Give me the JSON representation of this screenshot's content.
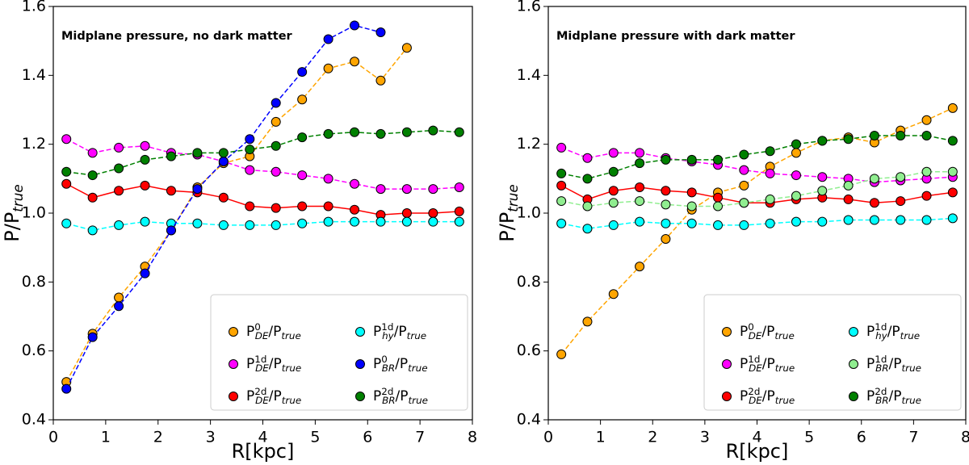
{
  "chart_data": [
    {
      "type": "line",
      "title": "Midplane pressure, no dark matter",
      "xlabel": "R[kpc]",
      "ylabel": "P/P_{true}",
      "x": [
        0.25,
        0.75,
        1.25,
        1.75,
        2.25,
        2.75,
        3.25,
        3.75,
        4.25,
        4.75,
        5.25,
        5.75,
        6.25,
        6.75,
        7.25,
        7.75
      ],
      "xlim": [
        0,
        8
      ],
      "ylim": [
        0.4,
        1.6
      ],
      "xticks": [
        0,
        1,
        2,
        3,
        4,
        5,
        6,
        7,
        8
      ],
      "yticks": [
        0.4,
        0.6,
        0.8,
        {
          "value": 1,
          "label": "1.0"
        },
        1.2,
        1.4,
        1.6
      ],
      "legend": "lower right",
      "series": [
        {
          "name": "P^{0}_{DE}/P_{true}",
          "color": "#ffa500",
          "linestyle": "dashed",
          "values": [
            0.51,
            0.65,
            0.755,
            0.845,
            0.95,
            1.075,
            1.145,
            1.165,
            1.265,
            1.33,
            1.42,
            1.44,
            1.385,
            1.48,
            null,
            null
          ]
        },
        {
          "name": "P^{1d}_{DE}/P_{true}",
          "color": "#ff00ff",
          "linestyle": "dashed",
          "values": [
            1.215,
            1.175,
            1.19,
            1.195,
            1.175,
            1.17,
            1.15,
            1.125,
            1.12,
            1.11,
            1.1,
            1.085,
            1.07,
            1.07,
            1.07,
            1.075
          ]
        },
        {
          "name": "P^{2d}_{DE}/P_{true}",
          "color": "#ff0000",
          "linestyle": "solid",
          "values": [
            1.085,
            1.045,
            1.065,
            1.08,
            1.065,
            1.06,
            1.045,
            1.02,
            1.015,
            1.02,
            1.02,
            1.01,
            0.995,
            1.0,
            1.0,
            1.005
          ]
        },
        {
          "name": "P^{1d}_{hy}/P_{true}",
          "color": "#00ffff",
          "linestyle": "dashed",
          "values": [
            0.97,
            0.95,
            0.965,
            0.975,
            0.97,
            0.97,
            0.965,
            0.965,
            0.965,
            0.97,
            0.975,
            0.975,
            0.975,
            0.975,
            0.975,
            0.975
          ]
        },
        {
          "name": "P^{0}_{BR}/P_{true}",
          "color": "#0000ff",
          "linestyle": "dashed",
          "values": [
            0.49,
            0.64,
            0.73,
            0.825,
            0.95,
            1.07,
            1.15,
            1.215,
            1.32,
            1.41,
            1.505,
            1.545,
            1.525,
            null,
            null,
            null
          ]
        },
        {
          "name": "P^{2d}_{BR}/P_{true}",
          "color": "#008000",
          "linestyle": "dashed",
          "values": [
            1.12,
            1.11,
            1.13,
            1.155,
            1.165,
            1.175,
            1.175,
            1.185,
            1.195,
            1.22,
            1.23,
            1.235,
            1.23,
            1.235,
            1.24,
            1.235
          ]
        }
      ]
    },
    {
      "type": "line",
      "title": "Midplane pressure with dark matter",
      "xlabel": "R[kpc]",
      "ylabel": "P/P_{true}",
      "x": [
        0.25,
        0.75,
        1.25,
        1.75,
        2.25,
        2.75,
        3.25,
        3.75,
        4.25,
        4.75,
        5.25,
        5.75,
        6.25,
        6.75,
        7.25,
        7.75
      ],
      "xlim": [
        0,
        8
      ],
      "ylim": [
        0.4,
        1.6
      ],
      "xticks": [
        0,
        1,
        2,
        3,
        4,
        5,
        6,
        7,
        8
      ],
      "yticks": [
        0.4,
        0.6,
        0.8,
        {
          "value": 1,
          "label": "1.0"
        },
        1.2,
        1.4,
        1.6
      ],
      "legend": "lower right",
      "series": [
        {
          "name": "P^{0}_{DE}/P_{true}",
          "color": "#ffa500",
          "linestyle": "dashed",
          "values": [
            0.59,
            0.685,
            0.765,
            0.845,
            0.925,
            1.01,
            1.06,
            1.08,
            1.135,
            1.175,
            1.21,
            1.22,
            1.205,
            1.24,
            1.27,
            1.305
          ]
        },
        {
          "name": "P^{1d}_{DE}/P_{true}",
          "color": "#ff00ff",
          "linestyle": "dashed",
          "values": [
            1.19,
            1.16,
            1.175,
            1.175,
            1.16,
            1.15,
            1.14,
            1.125,
            1.115,
            1.11,
            1.105,
            1.1,
            1.09,
            1.095,
            1.1,
            1.105
          ]
        },
        {
          "name": "P^{2d}_{DE}/P_{true}",
          "color": "#ff0000",
          "linestyle": "solid",
          "values": [
            1.08,
            1.04,
            1.065,
            1.075,
            1.065,
            1.06,
            1.045,
            1.03,
            1.03,
            1.04,
            1.045,
            1.04,
            1.03,
            1.035,
            1.05,
            1.06
          ]
        },
        {
          "name": "P^{1d}_{hy}/P_{true}",
          "color": "#00ffff",
          "linestyle": "dashed",
          "values": [
            0.97,
            0.955,
            0.965,
            0.975,
            0.97,
            0.97,
            0.965,
            0.965,
            0.97,
            0.975,
            0.975,
            0.98,
            0.98,
            0.98,
            0.98,
            0.985
          ]
        },
        {
          "name": "P^{1d}_{BR}/P_{true}",
          "color": "#90ee90",
          "linestyle": "dashed",
          "values": [
            1.035,
            1.02,
            1.03,
            1.035,
            1.025,
            1.02,
            1.02,
            1.03,
            1.04,
            1.05,
            1.065,
            1.08,
            1.1,
            1.105,
            1.12,
            1.12
          ]
        },
        {
          "name": "P^{2d}_{BR}/P_{true}",
          "color": "#008000",
          "linestyle": "dashed",
          "values": [
            1.115,
            1.1,
            1.12,
            1.145,
            1.155,
            1.155,
            1.155,
            1.17,
            1.18,
            1.2,
            1.21,
            1.215,
            1.225,
            1.225,
            1.225,
            1.21
          ]
        }
      ]
    }
  ]
}
